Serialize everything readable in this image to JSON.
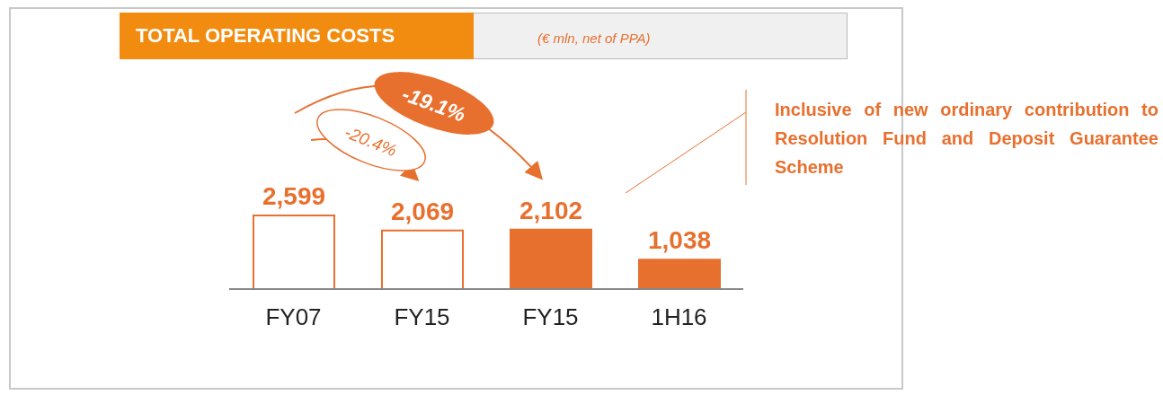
{
  "chart_data": {
    "type": "bar",
    "title": "TOTAL OPERATING COSTS",
    "subtitle": "(€ mln, net of PPA)",
    "categories": [
      "FY07",
      "FY15",
      "FY15",
      "1H16"
    ],
    "values": [
      2599,
      2069,
      2102,
      1038
    ],
    "value_labels": [
      "2,599",
      "2,069",
      "2,102",
      "1,038"
    ],
    "color": "#e8702f",
    "colors": [
      "#ffffff",
      "#ffffff",
      "#e8702f",
      "#e8702f"
    ],
    "grid": false,
    "legend": false,
    "annotations": [
      "-20.4%",
      "-19.1%",
      "Inclusive of new ordinary contribution to Resolution Fund and Deposit Guarantee Scheme"
    ]
  }
}
